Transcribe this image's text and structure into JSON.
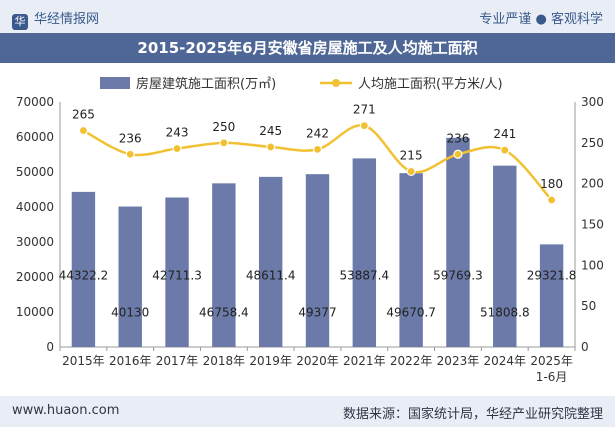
{
  "header": {
    "brand": "华经情报网",
    "slogan": "专业严谨 ● 客观科学"
  },
  "footer": {
    "website": "www.huaon.com",
    "source": "数据来源：国家统计局，华经产业研究院整理"
  },
  "chart_data": {
    "type": "bar+line",
    "title": "2015-2025年6月安徽省房屋施工及人均施工面积",
    "categories": [
      "2015年",
      "2016年",
      "2017年",
      "2018年",
      "2019年",
      "2020年",
      "2021年",
      "2022年",
      "2023年",
      "2024年",
      "2025年\n1-6月"
    ],
    "series": [
      {
        "name": "房屋建筑施工面积(万㎡)",
        "type": "bar",
        "axis": "left",
        "color": "#6b7aa8",
        "values": [
          44322.2,
          40130,
          42711.3,
          46758.4,
          48611.4,
          49377,
          53887.4,
          49670.7,
          59769.3,
          51808.8,
          29321.8
        ],
        "labels": [
          "44322.2",
          "40130",
          "42711.3",
          "46758.4",
          "48611.4",
          "49377",
          "53887.4",
          "49670.7",
          "59769.3",
          "51808.8",
          "29321.8"
        ]
      },
      {
        "name": "人均施工面积(平方米/人)",
        "type": "line",
        "axis": "right",
        "color": "#f2c131",
        "values": [
          265,
          236,
          243,
          250,
          245,
          242,
          271,
          215,
          236,
          241,
          180
        ],
        "labels": [
          "265",
          "236",
          "243",
          "250",
          "245",
          "242",
          "271",
          "215",
          "236",
          "241",
          "180"
        ]
      }
    ],
    "y_left": {
      "min": 0,
      "max": 70000,
      "ticks": [
        "0",
        "10000",
        "20000",
        "30000",
        "40000",
        "50000",
        "60000",
        "70000"
      ]
    },
    "y_right": {
      "min": 0,
      "max": 300,
      "ticks": [
        "0",
        "50",
        "100",
        "150",
        "200",
        "250",
        "300"
      ]
    },
    "legend": "top-center",
    "grid": false
  }
}
